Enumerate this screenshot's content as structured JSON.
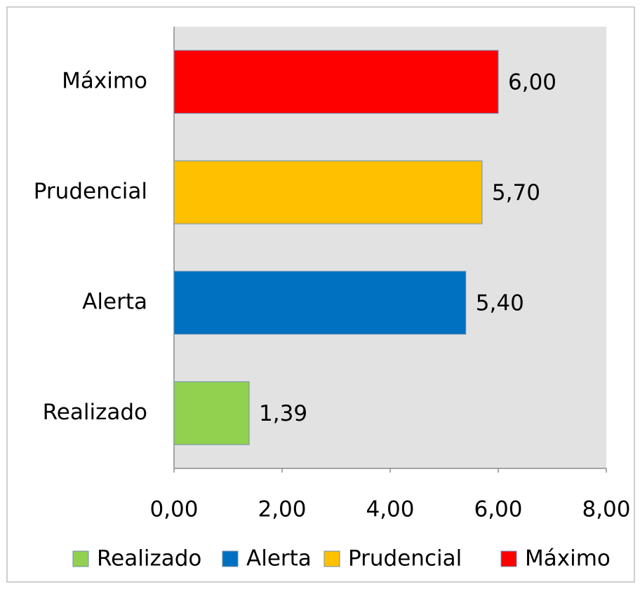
{
  "chart_data": {
    "type": "hbar",
    "categories": [
      "Realizado",
      "Alerta",
      "Prudencial",
      "Máximo"
    ],
    "values": [
      1.39,
      5.4,
      5.7,
      6.0
    ],
    "value_labels": [
      "1,39",
      "5,40",
      "5,70",
      "6,00"
    ],
    "colors": [
      "#92d050",
      "#0070c0",
      "#ffc000",
      "#ff0000"
    ],
    "xlim": [
      0,
      8
    ],
    "xticks": [
      {
        "value": 0,
        "label": "0,00"
      },
      {
        "value": 2,
        "label": "2,00"
      },
      {
        "value": 4,
        "label": "4,00"
      },
      {
        "value": 6,
        "label": "6,00"
      },
      {
        "value": 8,
        "label": "8,00"
      }
    ],
    "legend": "bottom"
  }
}
